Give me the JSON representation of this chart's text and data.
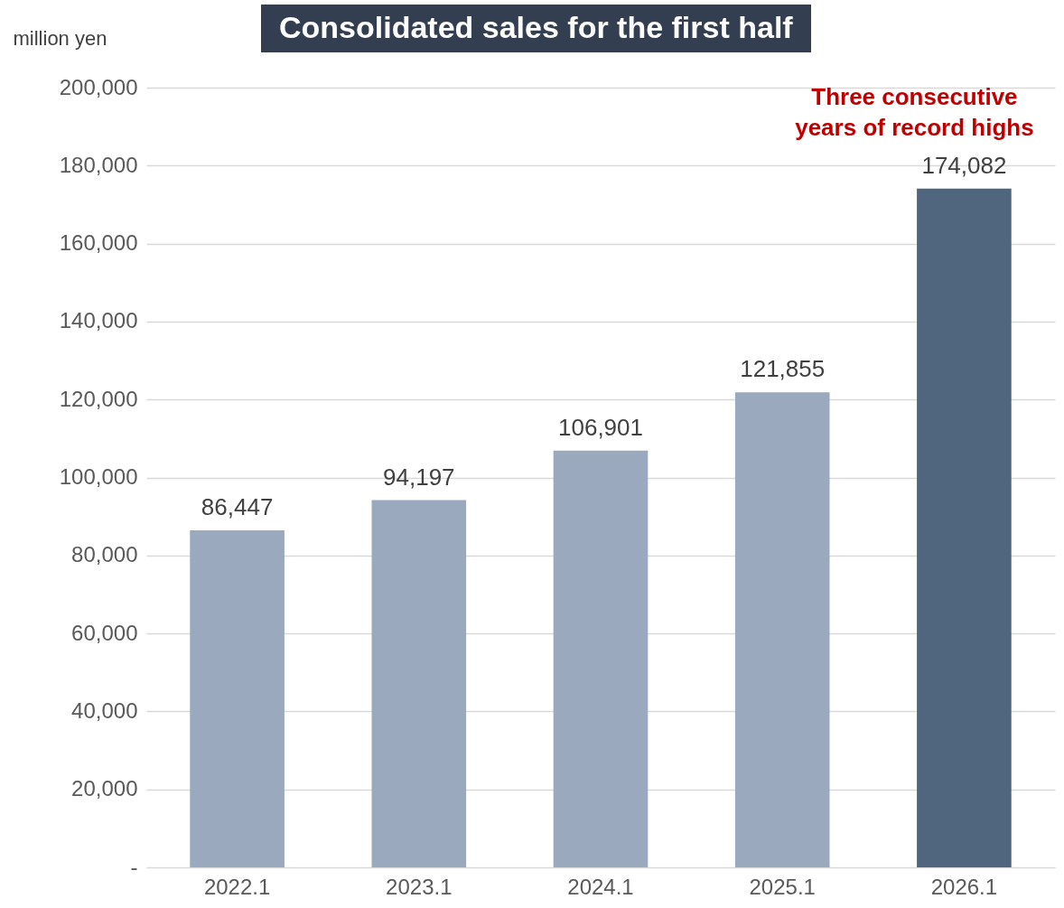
{
  "chart_data": {
    "type": "bar",
    "title": "Consolidated sales for the first half",
    "ylabel": "million yen",
    "categories": [
      "2022.1",
      "2023.1",
      "2024.1",
      "2025.1",
      "2026.1"
    ],
    "values": [
      86447,
      94197,
      106901,
      121855,
      174082
    ],
    "value_labels": [
      "86,447",
      "94,197",
      "106,901",
      "121,855",
      "174,082"
    ],
    "colors": [
      "#9aa9bd",
      "#9aa9bd",
      "#9aa9bd",
      "#9aa9bd",
      "#50657e"
    ],
    "ylim": [
      0,
      200000
    ],
    "yticks": [
      {
        "value": 0,
        "label": "-"
      },
      {
        "value": 20000,
        "label": "20,000"
      },
      {
        "value": 40000,
        "label": "40,000"
      },
      {
        "value": 60000,
        "label": "60,000"
      },
      {
        "value": 80000,
        "label": "80,000"
      },
      {
        "value": 100000,
        "label": "100,000"
      },
      {
        "value": 120000,
        "label": "120,000"
      },
      {
        "value": 140000,
        "label": "140,000"
      },
      {
        "value": 160000,
        "label": "160,000"
      },
      {
        "value": 180000,
        "label": "180,000"
      },
      {
        "value": 200000,
        "label": "200,000"
      }
    ],
    "grid": "y",
    "annotations": [
      {
        "text": "Three consecutive\nyears of record highs",
        "x": "2026.1",
        "y": 174082
      }
    ]
  }
}
